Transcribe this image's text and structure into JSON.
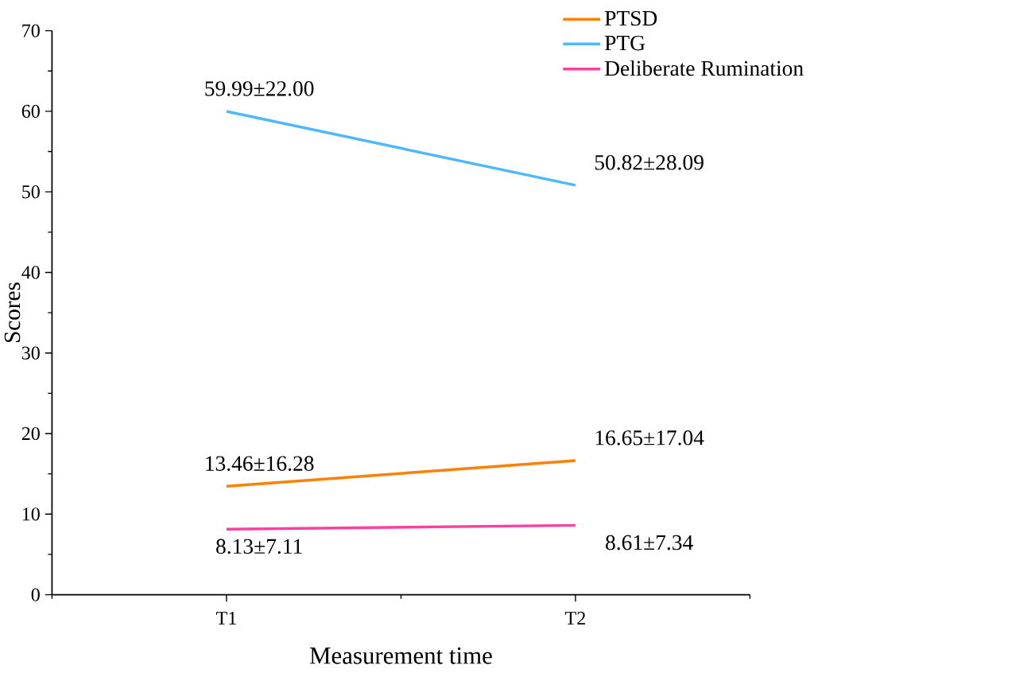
{
  "chart_data": {
    "type": "line",
    "xlabel": "Measurement time",
    "ylabel": "Scores",
    "categories": [
      "T1",
      "T2"
    ],
    "ylim": [
      0,
      70
    ],
    "yticks": [
      0,
      10,
      20,
      30,
      40,
      50,
      60,
      70
    ],
    "legend": "top right",
    "grid": false,
    "series": [
      {
        "name": "PTSD",
        "color": "#ff8000",
        "values": [
          13.46,
          16.65
        ],
        "value_labels": [
          "13.46±16.28",
          "16.65±17.04"
        ]
      },
      {
        "name": "PTG",
        "color": "#4db8ff",
        "values": [
          59.99,
          50.82
        ],
        "value_labels": [
          "59.99±22.00",
          "50.82±28.09"
        ]
      },
      {
        "name": "Deliberate Rumination",
        "color": "#ff3fa0",
        "values": [
          8.13,
          8.61
        ],
        "value_labels": [
          "8.13±7.11",
          "8.61±7.34"
        ]
      }
    ]
  }
}
